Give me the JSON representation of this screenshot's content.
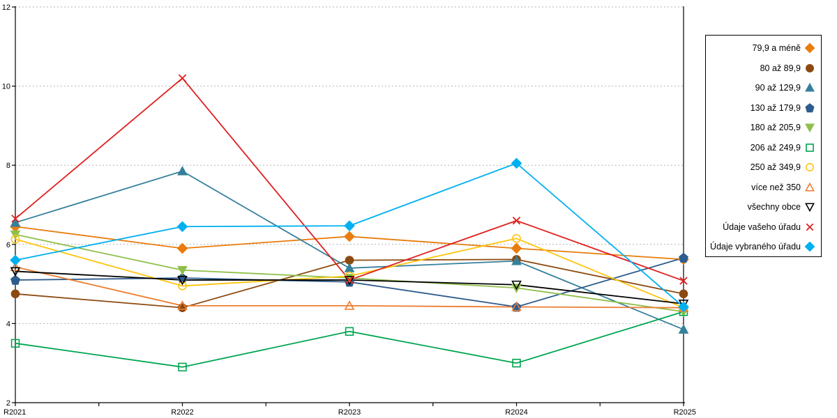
{
  "chart_data": {
    "type": "line",
    "categories": [
      "R2021",
      "R2022",
      "R2023",
      "R2024",
      "R2025"
    ],
    "ylim": [
      2,
      12
    ],
    "yticks": [
      2,
      4,
      6,
      8,
      10,
      12
    ],
    "grid": "horizontal dotted gray at 4,6,8,10,12",
    "legend_position": "right outside, vertical, markers right of labels",
    "axis_color": "#000000",
    "gridline_color": "#b2b2b2",
    "series": [
      {
        "name": "79,9 a méně",
        "marker": "diamond",
        "filled": true,
        "color": "#E87C0E",
        "values": [
          6.45,
          5.9,
          6.2,
          5.9,
          5.62
        ]
      },
      {
        "name": "80 až 89,9",
        "marker": "circle",
        "filled": true,
        "color": "#8C4A10",
        "values": [
          4.75,
          4.4,
          5.6,
          5.62,
          4.75
        ]
      },
      {
        "name": "90 až 129,9",
        "marker": "triangle-up",
        "filled": true,
        "color": "#35809B",
        "values": [
          6.55,
          7.85,
          5.4,
          5.58,
          3.85
        ]
      },
      {
        "name": "130 až 179,9",
        "marker": "pentagon",
        "filled": true,
        "color": "#2E5C8C",
        "values": [
          5.1,
          5.15,
          5.05,
          4.42,
          5.66
        ]
      },
      {
        "name": "180 až 205,9",
        "marker": "triangle-down",
        "filled": true,
        "color": "#8FBF4A",
        "values": [
          6.25,
          5.35,
          5.15,
          4.9,
          4.3
        ]
      },
      {
        "name": "206 až 249,9",
        "marker": "square",
        "filled": false,
        "color": "#00A550",
        "values": [
          3.5,
          2.9,
          3.8,
          3.0,
          4.3
        ]
      },
      {
        "name": "250 až 349,9",
        "marker": "circle",
        "filled": false,
        "color": "#FFC40D",
        "values": [
          6.13,
          4.95,
          5.2,
          6.15,
          4.4
        ]
      },
      {
        "name": "více než 350",
        "marker": "triangle-up",
        "filled": false,
        "color": "#ED7D31",
        "values": [
          5.43,
          4.45,
          4.45,
          4.42,
          4.4
        ]
      },
      {
        "name": "všechny obce",
        "marker": "triangle-down",
        "filled": false,
        "color": "#000000",
        "values": [
          5.32,
          5.1,
          5.1,
          4.98,
          4.5
        ]
      },
      {
        "name": "Údaje vašeho úřadu",
        "marker": "x",
        "filled": false,
        "color": "#E02020",
        "values": [
          6.65,
          10.2,
          5.1,
          6.6,
          5.08
        ]
      },
      {
        "name": "Údaje vybraného úřadu",
        "marker": "diamond",
        "filled": true,
        "color": "#00B0F0",
        "values": [
          5.6,
          6.45,
          6.47,
          8.05,
          4.42
        ]
      }
    ]
  }
}
